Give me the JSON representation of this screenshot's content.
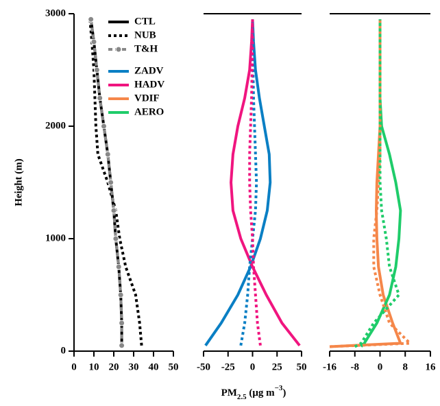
{
  "chart_data": [
    {
      "type": "line",
      "xlim": [
        0,
        50
      ],
      "xticks": [
        0,
        10,
        20,
        30,
        40,
        50
      ],
      "ylim": [
        0,
        3000
      ],
      "yticks": [
        0,
        1000,
        2000,
        3000
      ],
      "y": [
        50,
        250,
        500,
        750,
        1000,
        1250,
        1500,
        1750,
        2000,
        2250,
        2500,
        2750,
        2950
      ],
      "series": [
        {
          "color": "#000000",
          "style": "solid",
          "values": [
            24,
            24,
            23.5,
            22.5,
            21,
            20,
            18.5,
            17,
            15,
            13,
            11.5,
            10,
            8.5
          ]
        },
        {
          "color": "#000000",
          "style": "dotted",
          "values": [
            34,
            33,
            31,
            26,
            23,
            21,
            17,
            12,
            11,
            10.5,
            10,
            9,
            8
          ]
        },
        {
          "color": "#888888",
          "style": "circles",
          "values": [
            24,
            24,
            23.5,
            22.5,
            21,
            20,
            18.5,
            17,
            15,
            13,
            11.5,
            10,
            8.5
          ]
        }
      ]
    },
    {
      "type": "line",
      "xlim": [
        -50,
        50
      ],
      "xticks": [
        -50,
        -25,
        0,
        25,
        50
      ],
      "ylim": [
        0,
        3000
      ],
      "y": [
        50,
        250,
        500,
        750,
        1000,
        1250,
        1500,
        1750,
        2000,
        2250,
        2500,
        2750,
        2950
      ],
      "series": [
        {
          "color": "#0a7fc4",
          "style": "solid",
          "values": [
            -48,
            -32,
            -15,
            -2,
            8,
            15,
            18,
            17,
            12,
            7,
            3,
            1,
            0
          ]
        },
        {
          "color": "#f0157f",
          "style": "solid",
          "values": [
            48,
            30,
            14,
            0,
            -12,
            -20,
            -22,
            -20,
            -15,
            -8,
            -3,
            -1,
            0
          ]
        },
        {
          "color": "#0a7fc4",
          "style": "dotted",
          "values": [
            -12,
            -8,
            -5,
            -3,
            0,
            3,
            4,
            3,
            2,
            1,
            0.5,
            0,
            0
          ]
        },
        {
          "color": "#f0157f",
          "style": "dotted",
          "values": [
            8,
            5,
            3,
            1,
            0,
            -2,
            -3,
            -3,
            -2,
            -1,
            -0.5,
            0,
            0
          ]
        }
      ]
    },
    {
      "type": "line",
      "xlim": [
        -16,
        16
      ],
      "xticks": [
        -16,
        -8,
        0,
        8,
        16
      ],
      "ylim": [
        0,
        3000
      ],
      "y": [
        40,
        70,
        250,
        500,
        750,
        1000,
        1250,
        1500,
        1750,
        2000,
        2250,
        2500,
        2750,
        2950
      ],
      "series": [
        {
          "color": "#f5874a",
          "style": "solid",
          "values": [
            -16,
            6.5,
            4,
            1,
            -0.5,
            -1,
            -1.2,
            -1,
            -0.5,
            0,
            0,
            0,
            0,
            0
          ]
        },
        {
          "color": "#1fcc6a",
          "style": "solid",
          "values": [
            -6,
            -5,
            -1,
            3,
            5,
            6,
            6.5,
            5,
            3,
            0.5,
            0,
            0,
            0,
            0
          ]
        },
        {
          "color": "#f5874a",
          "style": "dotted",
          "values": [
            -16,
            9.5,
            3,
            0,
            -2,
            -2,
            -1,
            -0.5,
            0,
            0,
            0,
            0,
            0,
            0
          ]
        },
        {
          "color": "#1fcc6a",
          "style": "dotted",
          "values": [
            -8,
            -6,
            -2,
            6,
            3,
            2,
            0.5,
            0,
            0,
            0,
            0,
            0,
            0,
            0
          ]
        }
      ]
    }
  ],
  "ylabel": "Height (m)",
  "xlabel": [
    "PM",
    "2.5",
    " (μg m",
    "−3",
    ")"
  ],
  "legend": [
    {
      "name": "CTL",
      "color": "#000000",
      "style": "solid"
    },
    {
      "name": "NUB",
      "color": "#000000",
      "style": "dotted"
    },
    {
      "name": "T&H",
      "color": "#888888",
      "style": "circles"
    },
    {
      "name": "ZADV",
      "color": "#0a7fc4",
      "style": "solid"
    },
    {
      "name": "HADV",
      "color": "#f0157f",
      "style": "solid"
    },
    {
      "name": "VDIF",
      "color": "#f5874a",
      "style": "solid"
    },
    {
      "name": "AERO",
      "color": "#1fcc6a",
      "style": "solid"
    }
  ]
}
